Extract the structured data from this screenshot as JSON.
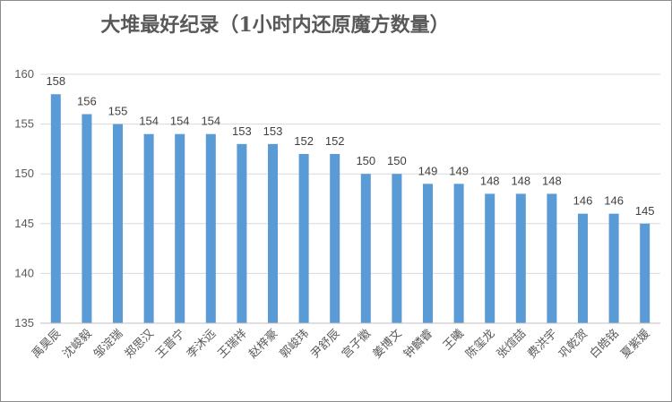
{
  "chart_data": {
    "type": "bar",
    "title": "大堆最好纪录（1小时内还原魔方数量）",
    "categories": [
      "禹昊辰",
      "沈峻毅",
      "邹淀瑞",
      "郑思汉",
      "王晋宁",
      "李沐远",
      "王瑞祥",
      "赵梓豪",
      "郭峻玮",
      "尹舒辰",
      "宫子徽",
      "姜博文",
      "钟麟睿",
      "王曦",
      "陈玺龙",
      "张煊喆",
      "费洪宇",
      "巩乾贺",
      "白皓铭",
      "夏紫媛"
    ],
    "values": [
      158,
      156,
      155,
      154,
      154,
      154,
      153,
      153,
      152,
      152,
      150,
      150,
      149,
      149,
      148,
      148,
      148,
      146,
      146,
      145
    ],
    "ylim": [
      135,
      160
    ],
    "yticks": [
      135,
      140,
      145,
      150,
      155,
      160
    ],
    "grid": true,
    "legend": "none",
    "bar_color": "#5b9bd5"
  }
}
